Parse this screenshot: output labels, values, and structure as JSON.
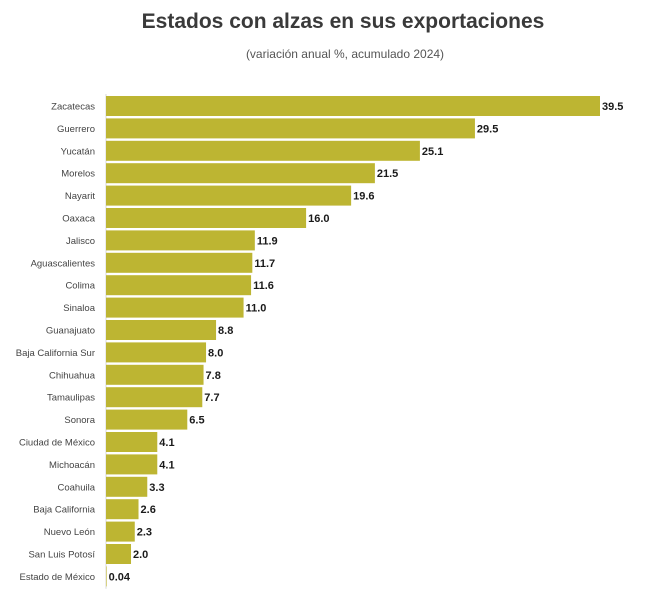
{
  "chart_data": {
    "type": "bar",
    "orientation": "horizontal",
    "title": "Estados con alzas en sus exportaciones",
    "subtitle": "(variación anual %, acumulado 2024)",
    "xlabel": "",
    "ylabel": "",
    "xlim": [
      0,
      39.5
    ],
    "grid": false,
    "bar_color": "#bdb532",
    "categories": [
      "Zacatecas",
      "Guerrero",
      "Yucatán",
      "Morelos",
      "Nayarit",
      "Oaxaca",
      "Jalisco",
      "Aguascalientes",
      "Colima",
      "Sinaloa",
      "Guanajuato",
      "Baja California Sur",
      "Chihuahua",
      "Tamaulipas",
      "Sonora",
      "Ciudad de México",
      "Michoacán",
      "Coahuila",
      "Baja California",
      "Nuevo León",
      "San Luis Potosí",
      "Estado de México"
    ],
    "values": [
      39.5,
      29.5,
      25.1,
      21.5,
      19.6,
      16.0,
      11.9,
      11.7,
      11.6,
      11.0,
      8.8,
      8.0,
      7.8,
      7.7,
      6.5,
      4.1,
      4.1,
      3.3,
      2.6,
      2.3,
      2.0,
      0.04
    ],
    "labels": [
      "39.5",
      "29.5",
      "25.1",
      "21.5",
      "19.6",
      "16.0",
      "11.9",
      "11.7",
      "11.6",
      "11.0",
      "8.8",
      "8.0",
      "7.8",
      "7.7",
      "6.5",
      "4.1",
      "4.1",
      "3.3",
      "2.6",
      "2.3",
      "2.0",
      "0.04"
    ]
  }
}
